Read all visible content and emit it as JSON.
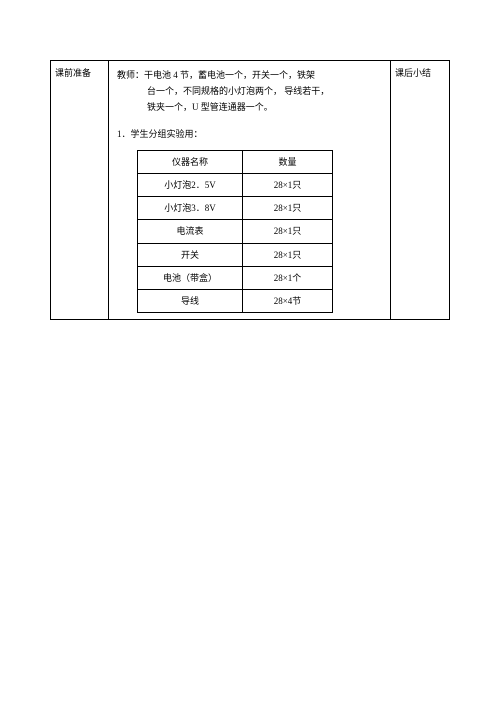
{
  "main": {
    "row_label": "课前准备",
    "note_label": "课后小结",
    "teacher_line1": "教师：干电池 4 节，蓄电池一个，开关一个，铁架",
    "teacher_line2": "台一个，不同规格的小灯泡两个， 导线若干，",
    "teacher_line3": "铁夹一个，U 型管连通器一个。",
    "section_title": "1．学生分组实验用：",
    "table": {
      "headers": [
        "仪器名称",
        "数量"
      ],
      "rows": [
        [
          "小灯泡2．5V",
          "28×1只"
        ],
        [
          "小灯泡3．8V",
          "28×1只"
        ],
        [
          "电流表",
          "28×1只"
        ],
        [
          "开关",
          "28×1只"
        ],
        [
          "电池（带盒）",
          "28×1个"
        ],
        [
          "导线",
          "28×4节"
        ]
      ]
    }
  }
}
